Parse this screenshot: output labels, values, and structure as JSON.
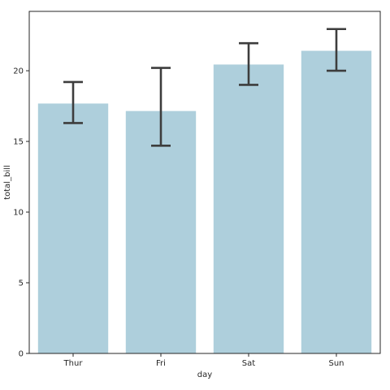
{
  "chart_data": {
    "type": "bar",
    "title": "",
    "xlabel": "day",
    "ylabel": "total_bill",
    "categories": [
      "Thur",
      "Fri",
      "Sat",
      "Sun"
    ],
    "values": [
      17.68,
      17.15,
      20.44,
      21.41
    ],
    "error_low": [
      16.3,
      14.7,
      19.0,
      20.0
    ],
    "error_high": [
      19.2,
      20.2,
      21.95,
      22.95
    ],
    "ylim": [
      0,
      24.2
    ],
    "yticks": [
      0,
      5,
      10,
      15,
      20
    ],
    "grid": false,
    "legend": "none",
    "colors": {
      "bar": "#aecfdc",
      "errorbar": "#3d3d3d",
      "axis": "#262626"
    }
  }
}
